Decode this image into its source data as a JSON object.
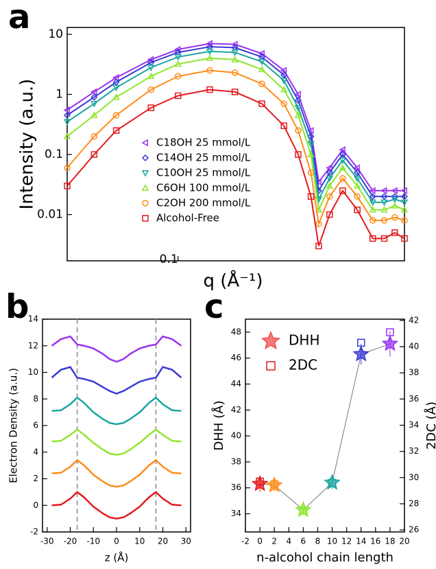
{
  "chart_data": [
    {
      "type": "scatter",
      "panel_label": "a",
      "xlabel": "q (Å⁻¹)",
      "ylabel": "Intensity (a.u.)",
      "xscale": "log",
      "yscale": "log",
      "xlim": [
        0.04,
        0.65
      ],
      "ylim": [
        0.0017,
        13
      ],
      "xticks": [
        0.1
      ],
      "yticks": [
        0.01,
        0.1,
        1,
        10
      ],
      "connect": true,
      "x": [
        0.04,
        0.05,
        0.06,
        0.08,
        0.1,
        0.13,
        0.16,
        0.2,
        0.24,
        0.27,
        0.3,
        0.32,
        0.35,
        0.39,
        0.44,
        0.5,
        0.55,
        0.6,
        0.65
      ],
      "series": [
        {
          "name": "C18OH 25 mmol/L",
          "color": "#9933ee",
          "marker": "triangle-left",
          "values": [
            0.55,
            1.1,
            1.9,
            3.8,
            5.6,
            7.0,
            6.8,
            4.8,
            2.5,
            1.0,
            0.25,
            0.035,
            0.06,
            0.12,
            0.06,
            0.025,
            0.025,
            0.025,
            0.025
          ]
        },
        {
          "name": "C14OH 25 mmol/L",
          "color": "#3a3ad6",
          "marker": "diamond",
          "values": [
            0.45,
            0.9,
            1.6,
            3.4,
            5.0,
            6.2,
            6.0,
            4.2,
            2.1,
            0.8,
            0.2,
            0.025,
            0.05,
            0.1,
            0.05,
            0.02,
            0.02,
            0.02,
            0.02
          ]
        },
        {
          "name": "C10OH 25 mmol/L",
          "color": "#1aa6a0",
          "marker": "triangle-down",
          "values": [
            0.35,
            0.7,
            1.3,
            2.8,
            4.2,
            5.2,
            5.0,
            3.5,
            1.7,
            0.6,
            0.15,
            0.018,
            0.04,
            0.08,
            0.04,
            0.016,
            0.016,
            0.018,
            0.016
          ]
        },
        {
          "name": "C6OH 100 mmol/L",
          "color": "#8ee62e",
          "marker": "triangle-up",
          "values": [
            0.2,
            0.45,
            0.9,
            2.0,
            3.2,
            4.0,
            3.8,
            2.6,
            1.2,
            0.45,
            0.1,
            0.012,
            0.03,
            0.06,
            0.03,
            0.012,
            0.012,
            0.014,
            0.012
          ]
        },
        {
          "name": "C2OH 200 mmol/L",
          "color": "#ff8c1a",
          "marker": "circle",
          "values": [
            0.06,
            0.2,
            0.45,
            1.2,
            2.0,
            2.5,
            2.3,
            1.5,
            0.7,
            0.25,
            0.05,
            0.007,
            0.02,
            0.04,
            0.02,
            0.008,
            0.008,
            0.009,
            0.008
          ]
        },
        {
          "name": "Alcohol-Free",
          "color": "#e31a1c",
          "marker": "square",
          "values": [
            0.03,
            0.1,
            0.25,
            0.6,
            0.95,
            1.2,
            1.1,
            0.7,
            0.3,
            0.1,
            0.02,
            0.003,
            0.01,
            0.025,
            0.012,
            0.004,
            0.004,
            0.005,
            0.004
          ]
        }
      ]
    },
    {
      "type": "line",
      "panel_label": "b",
      "xlabel": "z (Å)",
      "ylabel": "Electron Density (a.u.)",
      "xlim": [
        -32,
        32
      ],
      "ylim": [
        -2,
        14
      ],
      "xticks": [
        -30,
        -20,
        -10,
        0,
        10,
        20,
        30
      ],
      "yticks": [
        -2,
        0,
        2,
        4,
        6,
        8,
        10,
        12,
        14
      ],
      "reference_lines": [
        -17,
        17
      ],
      "x": [
        -28,
        -24,
        -20,
        -17,
        -14,
        -10,
        -6,
        -3,
        0,
        3,
        6,
        10,
        14,
        17,
        20,
        24,
        28
      ],
      "series": [
        {
          "color": "#9933ee",
          "values": [
            12,
            12.5,
            12.7,
            12.1,
            12.0,
            11.8,
            11.4,
            11.0,
            10.8,
            11.0,
            11.4,
            11.8,
            12.0,
            12.1,
            12.7,
            12.5,
            12
          ]
        },
        {
          "color": "#3a3ad6",
          "values": [
            9.6,
            10.2,
            10.4,
            9.6,
            9.5,
            9.3,
            8.9,
            8.6,
            8.4,
            8.6,
            8.9,
            9.3,
            9.5,
            9.6,
            10.4,
            10.2,
            9.6
          ]
        },
        {
          "color": "#1aa6a0",
          "values": [
            7.1,
            7.15,
            7.6,
            8.1,
            7.7,
            7.0,
            6.5,
            6.2,
            6.1,
            6.2,
            6.5,
            7.0,
            7.7,
            8.1,
            7.6,
            7.15,
            7.1
          ]
        },
        {
          "color": "#8ee62e",
          "values": [
            4.8,
            4.85,
            5.3,
            5.7,
            5.3,
            4.7,
            4.2,
            3.9,
            3.8,
            3.9,
            4.2,
            4.7,
            5.3,
            5.7,
            5.3,
            4.85,
            4.8
          ]
        },
        {
          "color": "#ff8c1a",
          "values": [
            2.4,
            2.45,
            2.9,
            3.4,
            3.0,
            2.3,
            1.8,
            1.5,
            1.4,
            1.5,
            1.8,
            2.3,
            3.0,
            3.4,
            2.9,
            2.45,
            2.4
          ]
        },
        {
          "color": "#e31a1c",
          "values": [
            0,
            0.05,
            0.5,
            1.0,
            0.6,
            -0.1,
            -0.6,
            -0.9,
            -1.0,
            -0.9,
            -0.6,
            -0.1,
            0.6,
            1.0,
            0.5,
            0.05,
            0
          ]
        }
      ]
    },
    {
      "type": "scatter",
      "panel_label": "c",
      "xlabel": "n-alcohol chain length",
      "ylabel": "DHH (Å)",
      "y2label": "2DC (Å)",
      "xlim": [
        -2,
        20
      ],
      "ylim": [
        32.6,
        49
      ],
      "y2lim": [
        25.85,
        42.1
      ],
      "xticks": [
        -2,
        0,
        2,
        4,
        6,
        8,
        10,
        12,
        14,
        16,
        18,
        20
      ],
      "yticks": [
        34,
        36,
        38,
        40,
        42,
        44,
        46,
        48
      ],
      "y2ticks": [
        26,
        28,
        30,
        32,
        34,
        36,
        38,
        40,
        42
      ],
      "connect": true,
      "point_colors": [
        "#e31a1c",
        "#ff8c1a",
        "#8ee62e",
        "#1aa6a0",
        "#3a3ad6",
        "#9933ee"
      ],
      "x": [
        0,
        2,
        6,
        10,
        14,
        18
      ],
      "series": [
        {
          "name": "DHH",
          "color": "#f05050",
          "marker": "star",
          "values": [
            36.3,
            36.2,
            34.3,
            36.4,
            46.3,
            47.1
          ],
          "errors": [
            0.6,
            0.5,
            0.4,
            0.5,
            0.8,
            1.0
          ]
        },
        {
          "name": "2DC",
          "color": "#e31a1c",
          "marker": "square",
          "axis": "y2",
          "values": [
            29.7,
            29.5,
            27.5,
            29.6,
            40.3,
            41.1
          ]
        }
      ]
    }
  ]
}
